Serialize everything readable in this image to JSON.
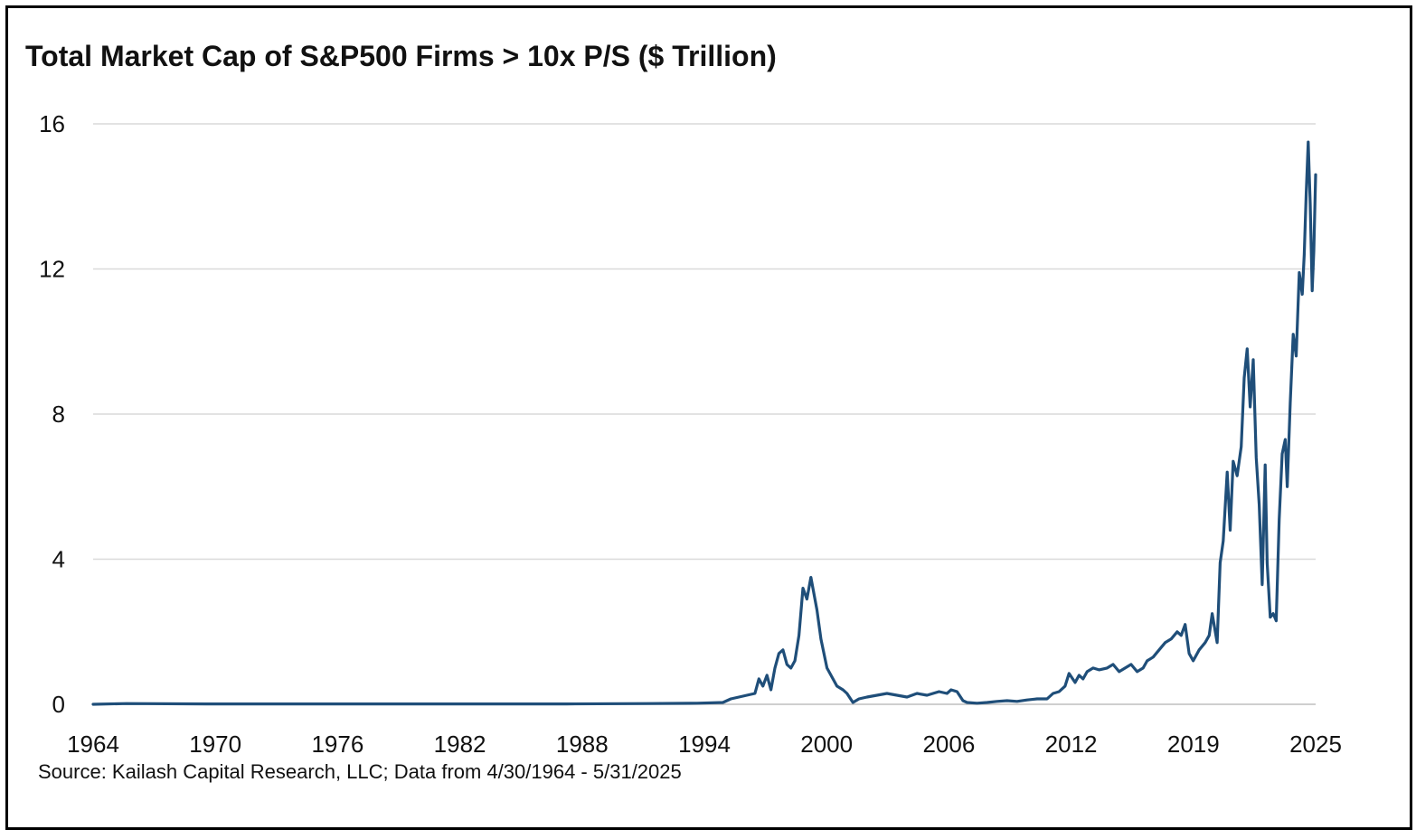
{
  "chart_data": {
    "type": "line",
    "title": "Total Market Cap of S&P500 Firms > 10x P/S ($ Trillion)",
    "source": "Source: Kailash Capital Research, LLC; Data from 4/30/1964 - 5/31/2025",
    "xlabel": "",
    "ylabel": "",
    "xlim": [
      1964.33,
      2025.42
    ],
    "ylim": [
      0,
      16
    ],
    "x_ticks": [
      "1964",
      "1970",
      "1976",
      "1982",
      "1988",
      "1994",
      "2000",
      "2006",
      "2012",
      "2019",
      "2025"
    ],
    "y_ticks": [
      "0",
      "4",
      "8",
      "12",
      "16"
    ],
    "grid": "horizontal",
    "legend": "none",
    "line_color": "#1f4e79",
    "series": [
      {
        "x": [
          1964.33,
          1966.0,
          1970.0,
          1976.0,
          1982.0,
          1988.0,
          1992.0,
          1994.5,
          1995.8,
          1996.2,
          1996.6,
          1997.0,
          1997.4,
          1997.6,
          1997.8,
          1998.0,
          1998.2,
          1998.4,
          1998.6,
          1998.8,
          1999.0,
          1999.2,
          1999.4,
          1999.6,
          1999.8,
          2000.0,
          2000.2,
          2000.5,
          2000.7,
          2001.0,
          2001.2,
          2001.5,
          2001.8,
          2002.0,
          2002.3,
          2002.6,
          2003.0,
          2003.5,
          2004.0,
          2004.5,
          2005.0,
          2005.5,
          2006.0,
          2006.3,
          2006.6,
          2007.0,
          2007.2,
          2007.5,
          2007.8,
          2008.0,
          2008.5,
          2009.0,
          2009.5,
          2010.0,
          2010.5,
          2011.0,
          2011.5,
          2012.0,
          2012.3,
          2012.6,
          2012.9,
          2013.1,
          2013.4,
          2013.6,
          2013.8,
          2014.0,
          2014.3,
          2014.6,
          2015.0,
          2015.3,
          2015.6,
          2015.9,
          2016.2,
          2016.5,
          2016.8,
          2017.0,
          2017.3,
          2017.6,
          2017.9,
          2018.2,
          2018.5,
          2018.7,
          2018.9,
          2019.1,
          2019.3,
          2019.6,
          2019.9,
          2020.1,
          2020.25,
          2020.5,
          2020.65,
          2020.8,
          2021.0,
          2021.15,
          2021.3,
          2021.5,
          2021.7,
          2021.85,
          2022.0,
          2022.15,
          2022.3,
          2022.45,
          2022.6,
          2022.75,
          2022.9,
          2023.0,
          2023.15,
          2023.3,
          2023.45,
          2023.6,
          2023.75,
          2023.9,
          2024.0,
          2024.15,
          2024.3,
          2024.45,
          2024.6,
          2024.75,
          2024.85,
          2024.95,
          2025.05,
          2025.15,
          2025.25,
          2025.33,
          2025.42
        ],
        "y": [
          0.0,
          0.02,
          0.01,
          0.01,
          0.01,
          0.01,
          0.02,
          0.03,
          0.05,
          0.15,
          0.2,
          0.25,
          0.3,
          0.7,
          0.5,
          0.8,
          0.4,
          1.0,
          1.4,
          1.5,
          1.1,
          1.0,
          1.2,
          1.9,
          3.2,
          2.9,
          3.5,
          2.6,
          1.8,
          1.0,
          0.8,
          0.5,
          0.4,
          0.3,
          0.05,
          0.15,
          0.2,
          0.25,
          0.3,
          0.25,
          0.2,
          0.3,
          0.25,
          0.3,
          0.35,
          0.3,
          0.4,
          0.35,
          0.1,
          0.05,
          0.03,
          0.05,
          0.08,
          0.1,
          0.08,
          0.12,
          0.15,
          0.15,
          0.3,
          0.35,
          0.5,
          0.85,
          0.6,
          0.8,
          0.7,
          0.9,
          1.0,
          0.95,
          1.0,
          1.1,
          0.9,
          1.0,
          1.1,
          0.9,
          1.0,
          1.2,
          1.3,
          1.5,
          1.7,
          1.8,
          2.0,
          1.9,
          2.2,
          1.4,
          1.2,
          1.5,
          1.7,
          1.9,
          2.5,
          1.7,
          3.9,
          4.5,
          6.4,
          4.8,
          6.7,
          6.3,
          7.1,
          9.0,
          9.8,
          8.2,
          9.5,
          6.8,
          5.5,
          3.3,
          6.6,
          3.9,
          2.4,
          2.5,
          2.3,
          5.1,
          6.9,
          7.3,
          6.0,
          8.3,
          10.2,
          9.6,
          11.9,
          11.3,
          12.4,
          14.1,
          15.5,
          13.8,
          11.4,
          12.5,
          14.6
        ]
      }
    ]
  }
}
